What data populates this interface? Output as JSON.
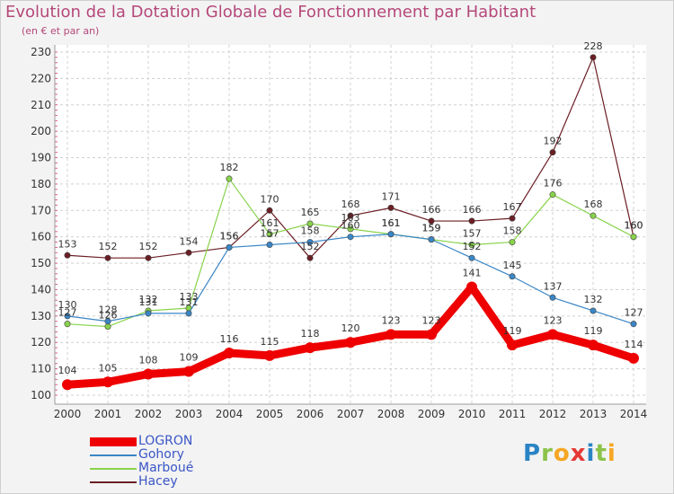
{
  "title": "Evolution de la Dotation Globale de Fonctionnement par Habitant",
  "subtitle": "(en € et par an)",
  "logo": {
    "letters": [
      "P",
      "r",
      "o",
      "x",
      "i",
      "t",
      "i"
    ],
    "colors": [
      "#2a84c4",
      "#8bc34a",
      "#f5a623",
      "#e53935",
      "#2a84c4",
      "#8bc34a",
      "#f5a623"
    ]
  },
  "chart_data": {
    "type": "line",
    "title": "Evolution de la Dotation Globale de Fonctionnement par Habitant",
    "subtitle": "(en € et par an)",
    "x": [
      "2000",
      "2001",
      "2002",
      "2003",
      "2004",
      "2005",
      "2006",
      "2007",
      "2008",
      "2009",
      "2010",
      "2011",
      "2012",
      "2013",
      "2014"
    ],
    "ylim": [
      100,
      230
    ],
    "yticks": [
      100,
      110,
      120,
      130,
      140,
      150,
      160,
      170,
      180,
      190,
      200,
      210,
      220,
      230
    ],
    "grid": true,
    "legend_position": "bottom-left",
    "series": [
      {
        "name": "LOGRON",
        "color": "#ee0000",
        "values": [
          104,
          105,
          108,
          109,
          116,
          115,
          118,
          120,
          123,
          123,
          141,
          119,
          123,
          119,
          114
        ]
      },
      {
        "name": "Gohory",
        "color": "#3a86c6",
        "values": [
          130,
          128,
          131,
          131,
          156,
          157,
          158,
          160,
          161,
          159,
          152,
          145,
          137,
          132,
          127
        ]
      },
      {
        "name": "Marboué",
        "color": "#88d34b",
        "values": [
          127,
          126,
          132,
          133,
          182,
          161,
          165,
          163,
          161,
          159,
          157,
          158,
          176,
          168,
          160
        ]
      },
      {
        "name": "Hacey",
        "color": "#6b1e24",
        "values": [
          153,
          152,
          152,
          154,
          156,
          170,
          152,
          168,
          171,
          166,
          166,
          167,
          192,
          228,
          160
        ]
      }
    ]
  }
}
